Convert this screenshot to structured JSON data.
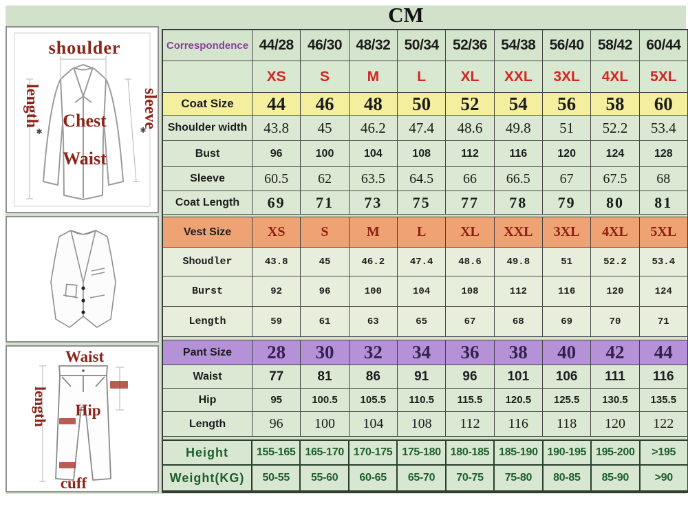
{
  "title": "CM",
  "colors": {
    "background_green": "#d2e2ca",
    "coat_header_yellow": "#f4ef9e",
    "vest_header_orange": "#efa273",
    "pant_header_purple": "#b592d8",
    "size_letter_red": "#d42622",
    "correspondence_purple": "#8a3d9e",
    "height_weight_green": "#1d5e2d",
    "diagram_label_red": "#8b2318"
  },
  "diagrams": {
    "jacket": {
      "shoulder_label": "shoulder",
      "length_label": "length",
      "sleeve_label": "sleeve",
      "chest_label": "Chest",
      "waist_label": "Waist"
    },
    "pants": {
      "waist_label": "Waist",
      "length_label": "length",
      "hip_label": "Hip",
      "cuff_label": "cuff"
    }
  },
  "chart_data": {
    "type": "table",
    "title": "CM",
    "unit": "cm",
    "columns": [
      "44/28",
      "46/30",
      "48/32",
      "50/34",
      "52/36",
      "54/38",
      "56/40",
      "58/42",
      "60/44"
    ],
    "rows": [
      {
        "label": "Correspondence",
        "kind": "corr",
        "values": [
          "44/28",
          "46/30",
          "48/32",
          "50/34",
          "52/36",
          "54/38",
          "56/40",
          "58/42",
          "60/44"
        ]
      },
      {
        "label": "",
        "kind": "letters",
        "values": [
          "XS",
          "S",
          "M",
          "L",
          "XL",
          "XXL",
          "3XL",
          "4XL",
          "5XL"
        ]
      },
      {
        "label": "Coat Size",
        "kind": "coat-size",
        "values": [
          "44",
          "46",
          "48",
          "50",
          "52",
          "54",
          "56",
          "58",
          "60"
        ]
      },
      {
        "label": "Shoulder width",
        "kind": "coat-shoulder",
        "values": [
          "43.8",
          "45",
          "46.2",
          "47.4",
          "48.6",
          "49.8",
          "51",
          "52.2",
          "53.4"
        ]
      },
      {
        "label": "Bust",
        "kind": "coat-bust",
        "values": [
          "96",
          "100",
          "104",
          "108",
          "112",
          "116",
          "120",
          "124",
          "128"
        ]
      },
      {
        "label": "Sleeve",
        "kind": "coat-sleeve",
        "values": [
          "60.5",
          "62",
          "63.5",
          "64.5",
          "66",
          "66.5",
          "67",
          "67.5",
          "68"
        ]
      },
      {
        "label": "Coat Length",
        "kind": "coat-length",
        "values": [
          "69",
          "71",
          "73",
          "75",
          "77",
          "78",
          "79",
          "80",
          "81"
        ]
      },
      {
        "label": "Vest Size",
        "kind": "vest-size",
        "values": [
          "XS",
          "S",
          "M",
          "L",
          "XL",
          "XXL",
          "3XL",
          "4XL",
          "5XL"
        ]
      },
      {
        "label": "Shoudler",
        "kind": "vest-row",
        "values": [
          "43.8",
          "45",
          "46.2",
          "47.4",
          "48.6",
          "49.8",
          "51",
          "52.2",
          "53.4"
        ]
      },
      {
        "label": "Burst",
        "kind": "vest-row",
        "values": [
          "92",
          "96",
          "100",
          "104",
          "108",
          "112",
          "116",
          "120",
          "124"
        ]
      },
      {
        "label": "Length",
        "kind": "vest-row",
        "values": [
          "59",
          "61",
          "63",
          "65",
          "67",
          "68",
          "69",
          "70",
          "71"
        ]
      },
      {
        "label": "Pant Size",
        "kind": "pant-size",
        "values": [
          "28",
          "30",
          "32",
          "34",
          "36",
          "38",
          "40",
          "42",
          "44"
        ]
      },
      {
        "label": "Waist",
        "kind": "pant-waist",
        "values": [
          "77",
          "81",
          "86",
          "91",
          "96",
          "101",
          "106",
          "111",
          "116"
        ]
      },
      {
        "label": "Hip",
        "kind": "pant-hip",
        "values": [
          "95",
          "100.5",
          "105.5",
          "110.5",
          "115.5",
          "120.5",
          "125.5",
          "130.5",
          "135.5"
        ]
      },
      {
        "label": "Length",
        "kind": "pant-length",
        "values": [
          "96",
          "100",
          "104",
          "108",
          "112",
          "116",
          "118",
          "120",
          "122"
        ]
      },
      {
        "label": "Height",
        "kind": "height",
        "values": [
          "155-165",
          "165-170",
          "170-175",
          "175-180",
          "180-185",
          "185-190",
          "190-195",
          "195-200",
          ">195"
        ]
      },
      {
        "label": "Weight(KG)",
        "kind": "weight",
        "values": [
          "50-55",
          "55-60",
          "60-65",
          "65-70",
          "70-75",
          "75-80",
          "80-85",
          "85-90",
          ">90"
        ]
      }
    ]
  }
}
